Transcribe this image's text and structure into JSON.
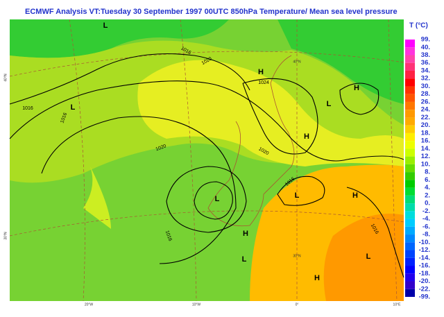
{
  "header": {
    "title": "ECMWF  Analysis VT:Tuesday 30 September 1997 00UTC 850hPa Temperature/ Mean sea level pressure"
  },
  "legend": {
    "title": "T (°C)",
    "labels": [
      "99.",
      "40.",
      "38.",
      "36.",
      "34.",
      "32.",
      "30.",
      "28.",
      "26.",
      "24.",
      "22.",
      "20.",
      "18.",
      "16.",
      "14.",
      "12.",
      "10.",
      "8.",
      "6.",
      "4.",
      "2.",
      "0.",
      "-2.",
      "-4.",
      "-6.",
      "-8.",
      "-10.",
      "-12.",
      "-14.",
      "-16.",
      "-18.",
      "-20.",
      "-22.",
      "-99."
    ],
    "colors": [
      "#ff00ff",
      "#ff33dd",
      "#ff44aa",
      "#ff3377",
      "#ff2244",
      "#ff0000",
      "#ff3300",
      "#ff5500",
      "#ff7700",
      "#ff9900",
      "#ffaa00",
      "#ffcc00",
      "#ffee00",
      "#eeff00",
      "#ccff00",
      "#99ee00",
      "#66dd00",
      "#33cc00",
      "#00cc00",
      "#00dd33",
      "#00dd77",
      "#00ddaa",
      "#00dddd",
      "#00ccff",
      "#00aaff",
      "#0088ff",
      "#0066ff",
      "#0044ff",
      "#0022ff",
      "#0000ff",
      "#2200ee",
      "#3300cc",
      "#0000aa"
    ]
  },
  "map": {
    "centers": [
      "L",
      "L",
      "H",
      "H",
      "L",
      "H",
      "L",
      "L",
      "H",
      "H",
      "L",
      "H",
      "L"
    ],
    "isobar_labels": [
      "1016",
      "1016",
      "1016",
      "1020",
      "1020",
      "1020",
      "1024",
      "1016",
      "1016",
      "1016"
    ],
    "graticule": [
      "20°W",
      "10°W",
      "0°",
      "10°E",
      "40°N",
      "30°N",
      "40°N",
      "30°N"
    ]
  }
}
